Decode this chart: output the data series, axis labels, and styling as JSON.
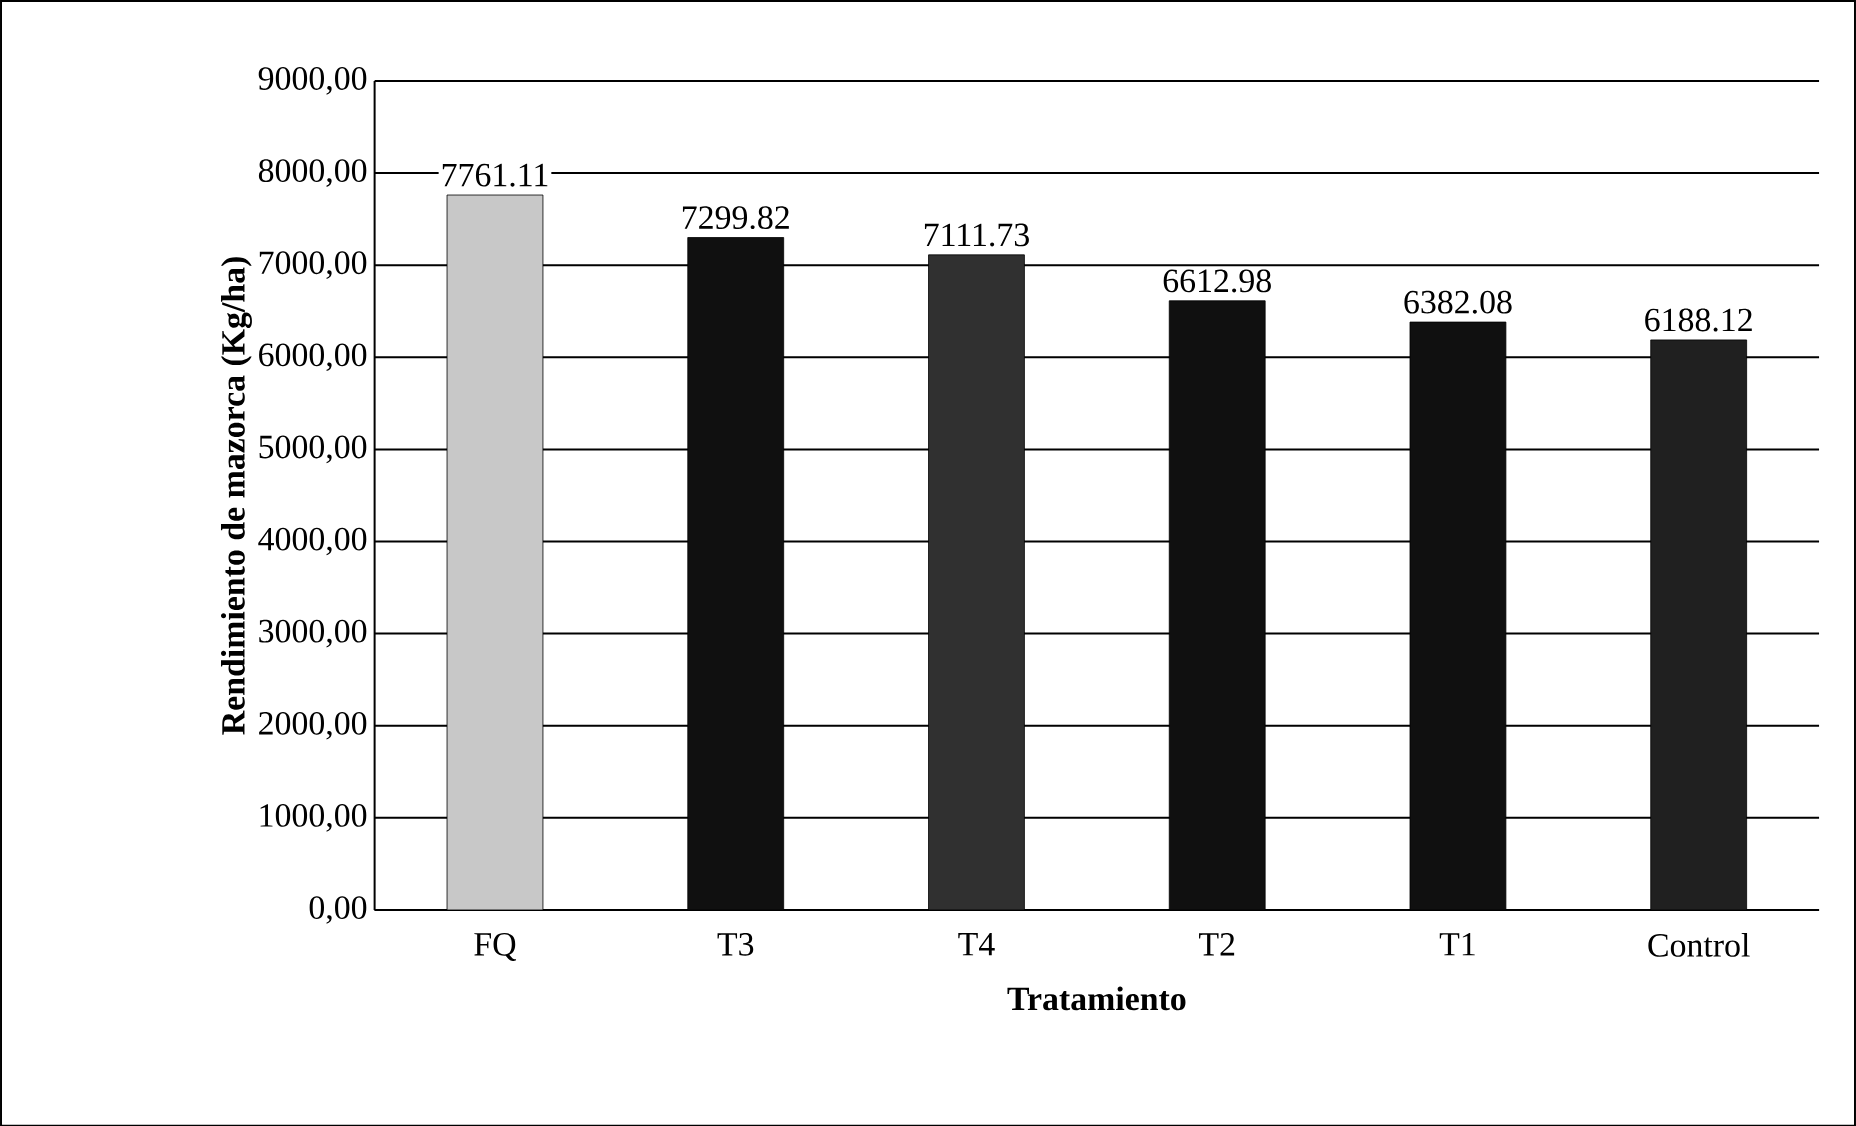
{
  "chart_data": {
    "type": "bar",
    "xlabel": "Tratamiento",
    "ylabel": "Rendimiento de mazorca (Kg/ha)",
    "categories": [
      "FQ",
      "T3",
      "T4",
      "T2",
      "T1",
      "Control"
    ],
    "values": [
      7761.11,
      7299.82,
      7111.73,
      6612.98,
      6382.08,
      6188.12
    ],
    "colors": [
      "#c8c8c8",
      "#101010",
      "#303030",
      "#101010",
      "#101010",
      "#202020"
    ],
    "data_labels": true,
    "grid": "y",
    "ylim": [
      0,
      9000
    ],
    "yticks": [
      {
        "value": 0,
        "label": "0,00"
      },
      {
        "value": 1000,
        "label": "1000,00"
      },
      {
        "value": 2000,
        "label": "2000,00"
      },
      {
        "value": 3000,
        "label": "3000,00"
      },
      {
        "value": 4000,
        "label": "4000,00"
      },
      {
        "value": 5000,
        "label": "5000,00"
      },
      {
        "value": 6000,
        "label": "6000,00"
      },
      {
        "value": 7000,
        "label": "7000,00"
      },
      {
        "value": 8000,
        "label": "8000,00"
      },
      {
        "value": 9000,
        "label": "9000,00"
      }
    ]
  }
}
